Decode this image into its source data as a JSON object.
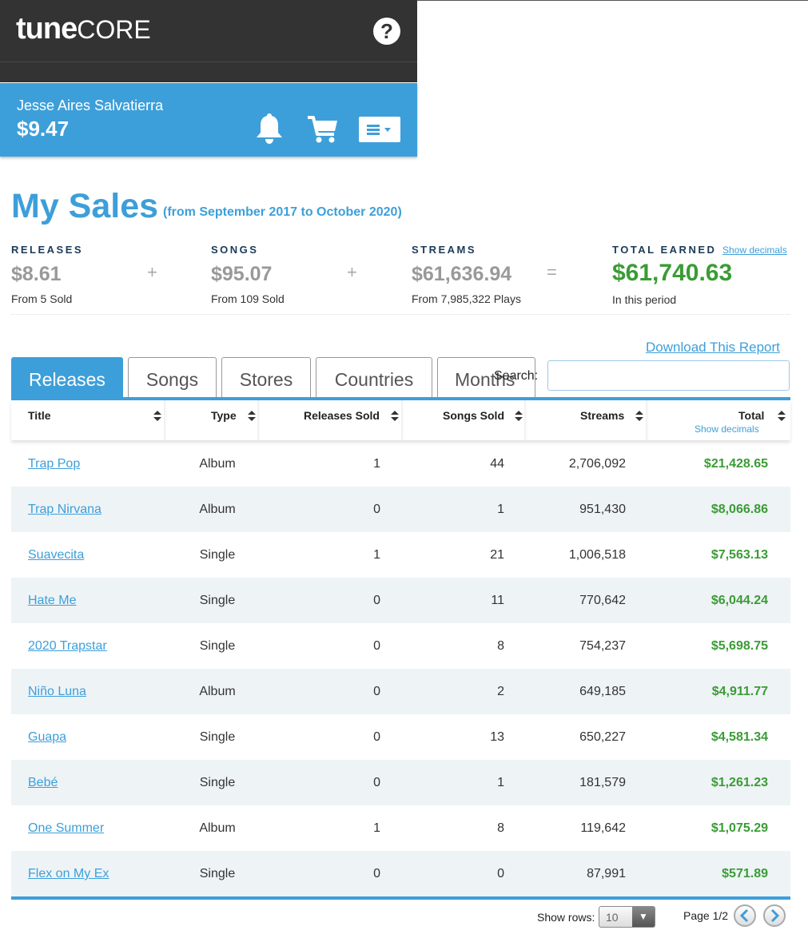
{
  "header": {
    "logo_bold": "tune",
    "logo_light": "CORE",
    "help_icon": "?"
  },
  "account": {
    "name": "Jesse Aires Salvatierra",
    "balance": "$9.47"
  },
  "page": {
    "title": "My Sales",
    "subtitle": "(from September 2017 to October 2020)"
  },
  "summary": {
    "releases": {
      "label": "RELEASES",
      "value": "$8.61",
      "sub": "From 5 Sold"
    },
    "songs": {
      "label": "SONGS",
      "value": "$95.07",
      "sub": "From 109 Sold"
    },
    "streams": {
      "label": "STREAMS",
      "value": "$61,636.94",
      "sub": "From 7,985,322 Plays"
    },
    "total": {
      "label": "TOTAL EARNED",
      "value": "$61,740.63",
      "sub": "In this period",
      "show_decimals": "Show decimals"
    },
    "plus": "+",
    "equals": "="
  },
  "download_label": "Download This Report",
  "tabs": [
    {
      "label": "Releases",
      "active": true
    },
    {
      "label": "Songs",
      "active": false
    },
    {
      "label": "Stores",
      "active": false
    },
    {
      "label": "Countries",
      "active": false
    },
    {
      "label": "Months",
      "active": false
    }
  ],
  "search": {
    "label": "Search:",
    "value": ""
  },
  "table": {
    "columns": {
      "title": "Title",
      "type": "Type",
      "releases_sold": "Releases Sold",
      "songs_sold": "Songs Sold",
      "streams": "Streams",
      "total": "Total",
      "show_decimals": "Show decimals"
    },
    "rows": [
      {
        "title": "Trap Pop",
        "type": "Album",
        "releases_sold": "1",
        "songs_sold": "44",
        "streams": "2,706,092",
        "total": "$21,428.65"
      },
      {
        "title": "Trap Nirvana",
        "type": "Album",
        "releases_sold": "0",
        "songs_sold": "1",
        "streams": "951,430",
        "total": "$8,066.86"
      },
      {
        "title": "Suavecita",
        "type": "Single",
        "releases_sold": "1",
        "songs_sold": "21",
        "streams": "1,006,518",
        "total": "$7,563.13"
      },
      {
        "title": "Hate Me",
        "type": "Single",
        "releases_sold": "0",
        "songs_sold": "11",
        "streams": "770,642",
        "total": "$6,044.24"
      },
      {
        "title": "2020 Trapstar",
        "type": "Single",
        "releases_sold": "0",
        "songs_sold": "8",
        "streams": "754,237",
        "total": "$5,698.75"
      },
      {
        "title": "Niño Luna",
        "type": "Album",
        "releases_sold": "0",
        "songs_sold": "2",
        "streams": "649,185",
        "total": "$4,911.77"
      },
      {
        "title": "Guapa",
        "type": "Single",
        "releases_sold": "0",
        "songs_sold": "13",
        "streams": "650,227",
        "total": "$4,581.34"
      },
      {
        "title": "Bebé",
        "type": "Single",
        "releases_sold": "0",
        "songs_sold": "1",
        "streams": "181,579",
        "total": "$1,261.23"
      },
      {
        "title": "One Summer",
        "type": "Album",
        "releases_sold": "1",
        "songs_sold": "8",
        "streams": "119,642",
        "total": "$1,075.29"
      },
      {
        "title": "Flex on My Ex",
        "type": "Single",
        "releases_sold": "0",
        "songs_sold": "0",
        "streams": "87,991",
        "total": "$571.89"
      }
    ]
  },
  "footer": {
    "show_rows_label": "Show rows:",
    "rows_value": "10",
    "page_label": "Page 1/2"
  },
  "colors": {
    "brand_blue": "#3d9fd9",
    "earned_green": "#3a9c35",
    "header_dark": "#333333"
  }
}
